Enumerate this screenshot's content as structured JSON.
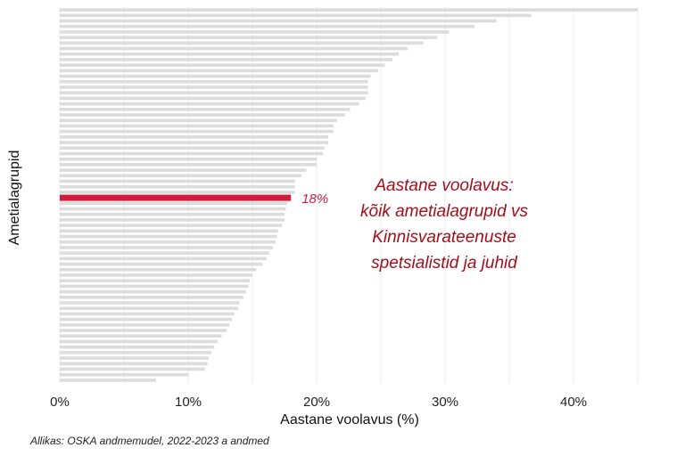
{
  "chart_data": {
    "type": "bar",
    "orientation": "horizontal",
    "ylabel": "Ametialagrupid",
    "xlabel": "Aastane voolavus (%)",
    "xlim": [
      0,
      0.472
    ],
    "x_ticks": [
      0,
      0.1,
      0.2,
      0.3,
      0.4
    ],
    "x_tick_labels": [
      "0%",
      "10%",
      "20%",
      "30%",
      "40%"
    ],
    "grid": true,
    "values": [
      0.45,
      0.367,
      0.34,
      0.323,
      0.303,
      0.294,
      0.283,
      0.271,
      0.264,
      0.259,
      0.253,
      0.248,
      0.242,
      0.24,
      0.24,
      0.24,
      0.238,
      0.233,
      0.226,
      0.222,
      0.216,
      0.213,
      0.213,
      0.209,
      0.209,
      0.206,
      0.205,
      0.2,
      0.2,
      0.192,
      0.188,
      0.183,
      0.183,
      0.183,
      0.18,
      0.177,
      0.176,
      0.175,
      0.175,
      0.173,
      0.17,
      0.169,
      0.168,
      0.166,
      0.163,
      0.161,
      0.158,
      0.153,
      0.15,
      0.148,
      0.147,
      0.145,
      0.143,
      0.14,
      0.139,
      0.136,
      0.134,
      0.132,
      0.13,
      0.126,
      0.123,
      0.12,
      0.118,
      0.116,
      0.115,
      0.113,
      0.1,
      0.075
    ],
    "highlight": {
      "index": 34,
      "value": 0.18,
      "label": "18%"
    },
    "annotation": [
      "Aastane voolavus:",
      "kõik ametialagrupid vs",
      "Kinnisvarateenuste",
      "spetsialistid ja juhid"
    ],
    "colors": {
      "bar": "#dcdcdc",
      "highlight": "#d61a3c",
      "annotation": "#a50d1a",
      "grid": "#ebebeb"
    }
  },
  "source": "Allikas: OSKA andmemudel, 2022-2023 a andmed"
}
